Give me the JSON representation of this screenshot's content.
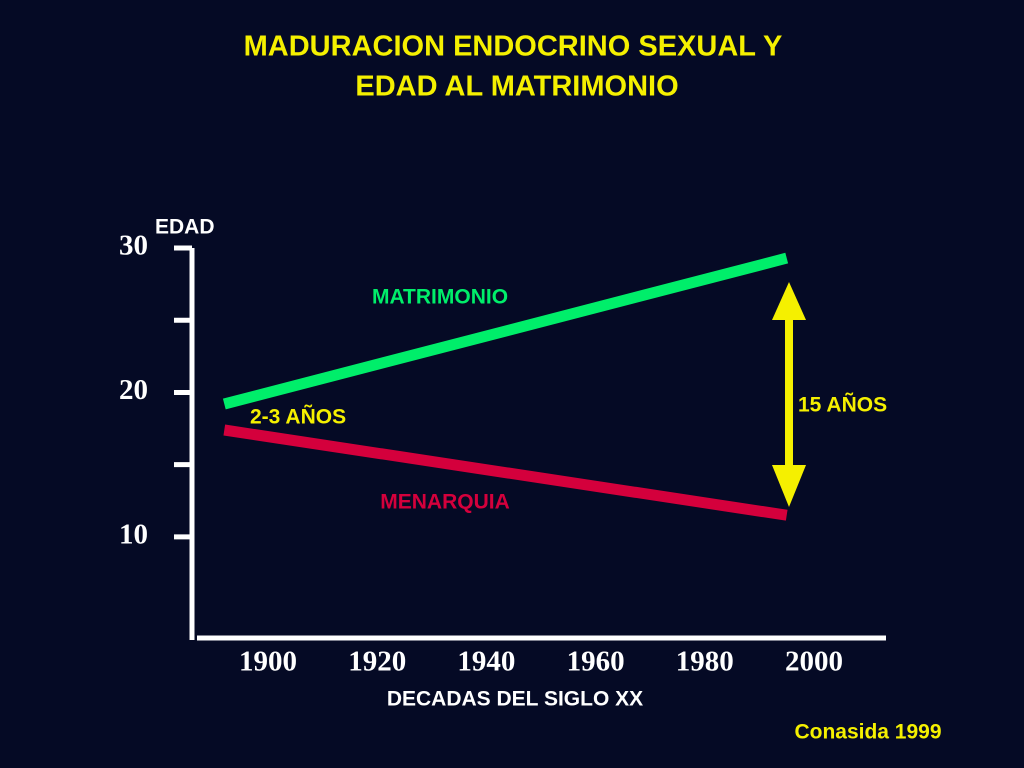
{
  "chart_data": {
    "type": "line",
    "title": [
      "MADURACION ENDOCRINO SEXUAL Y",
      "EDAD AL MATRIMONIO"
    ],
    "y_label": "EDAD",
    "x_label": "DECADAS DEL SIGLO XX",
    "source": "Conasida 1999",
    "annotations": [
      "2-3 AÑOS",
      "15 AÑOS"
    ],
    "xlim": [
      1887,
      2013
    ],
    "xticks": [
      1900,
      1920,
      1940,
      1960,
      1980,
      2000
    ],
    "ylim": [
      3,
      30
    ],
    "yticks": [
      10,
      20,
      30
    ],
    "minor_yticks": [
      15,
      25
    ],
    "series": [
      {
        "name": "MATRIMONIO",
        "color": "#00ee6a",
        "x": [
          1892,
          1995
        ],
        "values": [
          19.2,
          29.3
        ]
      },
      {
        "name": "MENARQUIA",
        "color": "#d4003c",
        "x": [
          1892,
          1995
        ],
        "values": [
          17.4,
          11.5
        ]
      }
    ]
  }
}
